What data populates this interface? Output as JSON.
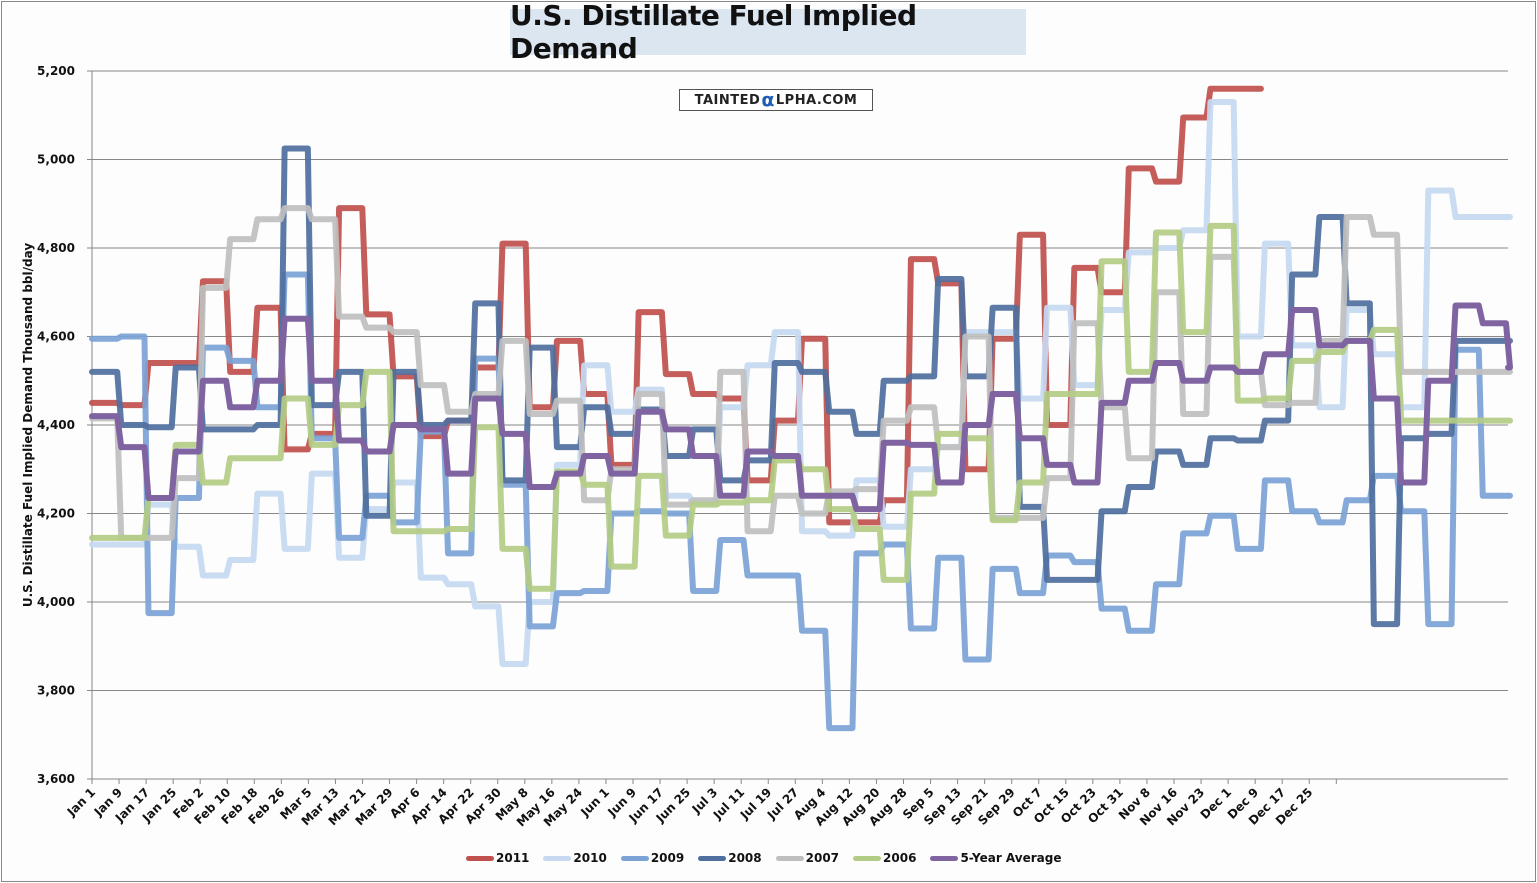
{
  "chart_data": {
    "type": "line",
    "title": "U.S. Distillate Fuel Implied Demand",
    "watermark": "TAINTEDαLPHA.COM",
    "ylabel": "U.S. Distillate Fuel Implied Demand Thousand bbl/day",
    "xlabel": "",
    "ylim": [
      3600,
      5200
    ],
    "yticks": [
      3600,
      3800,
      4000,
      4200,
      4400,
      4600,
      4800,
      5000,
      5200
    ],
    "ytick_labels": [
      "3,600",
      "3,800",
      "4,000",
      "4,200",
      "4,400",
      "4,600",
      "4,800",
      "5,000",
      "5,200"
    ],
    "grid": true,
    "legend_position": "bottom",
    "x_ticks": [
      "Jan 1",
      "Jan 9",
      "Jan 17",
      "Jan 25",
      "Feb 2",
      "Feb 10",
      "Feb 18",
      "Feb 26",
      "Mar 5",
      "Mar 13",
      "Mar 21",
      "Mar 29",
      "Apr 6",
      "Apr 14",
      "Apr 22",
      "Apr 30",
      "May 8",
      "May 16",
      "May 24",
      "Jun 1",
      "Jun 9",
      "Jun 17",
      "Jun 25",
      "Jul 3",
      "Jul 11",
      "Jul 19",
      "Jul 27",
      "Aug 4",
      "Aug 12",
      "Aug 20",
      "Aug 28",
      "Sep 5",
      "Sep 13",
      "Sep 21",
      "Sep 29",
      "Oct 7",
      "Oct 15",
      "Oct 23",
      "Oct 31",
      "Nov 8",
      "Nov 16",
      "Nov 23",
      "Dec 1",
      "Dec 9",
      "Dec 17",
      "Dec 25"
    ],
    "x_unit": "week of year (0-52)",
    "series": [
      {
        "name": "2011",
        "color": "#c0504d",
        "values": [
          4450,
          4445,
          4540,
          4540,
          4725,
          4520,
          4665,
          4345,
          4380,
          4890,
          4650,
          4510,
          4375,
          4410,
          4530,
          4810,
          4440,
          4590,
          4470,
          4310,
          4655,
          4515,
          4470,
          4460,
          4275,
          4410,
          4595,
          4180,
          4180,
          4230,
          4775,
          4720,
          4300,
          4595,
          4830,
          4400,
          4755,
          4700,
          4980,
          4950,
          5095,
          5160,
          5160,
          null,
          null,
          null,
          null,
          null,
          null,
          null,
          null,
          null,
          null
        ]
      },
      {
        "name": "2010",
        "color": "#c6d9f1",
        "values": [
          4130,
          4130,
          4220,
          4125,
          4060,
          4095,
          4245,
          4120,
          4290,
          4100,
          4210,
          4270,
          4055,
          4040,
          3990,
          3860,
          4000,
          4310,
          4535,
          4430,
          4480,
          4240,
          4225,
          4440,
          4535,
          4610,
          4160,
          4150,
          4275,
          4170,
          4300,
          4350,
          4610,
          4610,
          4460,
          4665,
          4490,
          4660,
          4790,
          4800,
          4840,
          5130,
          4600,
          4810,
          4580,
          4440,
          4660,
          4560,
          4440,
          4930,
          4870,
          4870,
          4870
        ]
      },
      {
        "name": "2009",
        "color": "#7ba3d6",
        "values": [
          4595,
          4600,
          3975,
          4235,
          4575,
          4545,
          4440,
          4740,
          4370,
          4145,
          4240,
          4180,
          4385,
          4110,
          4550,
          4265,
          3945,
          4020,
          4025,
          4200,
          4205,
          4200,
          4025,
          4140,
          4060,
          4060,
          3935,
          3715,
          4110,
          4130,
          3940,
          4100,
          3870,
          4075,
          4020,
          4105,
          4090,
          3985,
          3935,
          4040,
          4155,
          4195,
          4120,
          4275,
          4205,
          4180,
          4230,
          4285,
          4205,
          3950,
          4570,
          4240,
          4240
        ]
      },
      {
        "name": "2008",
        "color": "#4f6f9e",
        "values": [
          4520,
          4400,
          4395,
          4530,
          4390,
          4390,
          4400,
          5025,
          4445,
          4520,
          4195,
          4520,
          4400,
          4410,
          4675,
          4275,
          4575,
          4350,
          4440,
          4380,
          4435,
          4330,
          4390,
          4275,
          4320,
          4540,
          4520,
          4430,
          4380,
          4500,
          4510,
          4730,
          4510,
          4665,
          4215,
          4050,
          4050,
          4205,
          4260,
          4340,
          4310,
          4370,
          4365,
          4410,
          4740,
          4870,
          4675,
          3950,
          4370,
          4380,
          4590,
          4590,
          4590
        ]
      },
      {
        "name": "2007",
        "color": "#bfbfbf",
        "values": [
          4415,
          4145,
          4145,
          4280,
          4710,
          4820,
          4865,
          4890,
          4865,
          4645,
          4620,
          4610,
          4490,
          4430,
          4470,
          4590,
          4425,
          4455,
          4230,
          4300,
          4470,
          4220,
          4230,
          4520,
          4160,
          4240,
          4200,
          4250,
          4255,
          4410,
          4440,
          4350,
          4600,
          4190,
          4190,
          4280,
          4630,
          4440,
          4325,
          4700,
          4425,
          4780,
          4520,
          4445,
          4450,
          4590,
          4870,
          4830,
          4520,
          4520,
          4520,
          4520,
          4520
        ]
      },
      {
        "name": "2006",
        "color": "#b3cc85",
        "values": [
          4145,
          4145,
          4235,
          4355,
          4270,
          4325,
          4325,
          4460,
          4355,
          4445,
          4520,
          4160,
          4160,
          4165,
          4395,
          4120,
          4030,
          4295,
          4265,
          4080,
          4285,
          4150,
          4220,
          4225,
          4230,
          4320,
          4300,
          4210,
          4165,
          4050,
          4245,
          4380,
          4370,
          4185,
          4270,
          4470,
          4470,
          4770,
          4520,
          4835,
          4610,
          4850,
          4455,
          4460,
          4545,
          4565,
          4590,
          4615,
          4410,
          4410,
          4410,
          4410,
          4410
        ]
      },
      {
        "name": "5-Year Average",
        "color": "#8064a2",
        "values": [
          4420,
          4350,
          4235,
          4340,
          4500,
          4440,
          4500,
          4640,
          4500,
          4365,
          4340,
          4400,
          4390,
          4290,
          4460,
          4380,
          4260,
          4290,
          4330,
          4290,
          4430,
          4390,
          4330,
          4240,
          4340,
          4330,
          4240,
          4240,
          4210,
          4360,
          4355,
          4270,
          4400,
          4470,
          4370,
          4310,
          4270,
          4450,
          4500,
          4540,
          4500,
          4530,
          4520,
          4560,
          4660,
          4580,
          4590,
          4460,
          4270,
          4500,
          4670,
          4630,
          4530
        ]
      }
    ]
  },
  "legend": {
    "items": [
      {
        "label": "2011",
        "color": "#c0504d"
      },
      {
        "label": "2010",
        "color": "#c6d9f1"
      },
      {
        "label": "2009",
        "color": "#7ba3d6"
      },
      {
        "label": "2008",
        "color": "#4f6f9e"
      },
      {
        "label": "2007",
        "color": "#bfbfbf"
      },
      {
        "label": "2006",
        "color": "#b3cc85"
      },
      {
        "label": "5-Year Average",
        "color": "#8064a2"
      }
    ]
  }
}
